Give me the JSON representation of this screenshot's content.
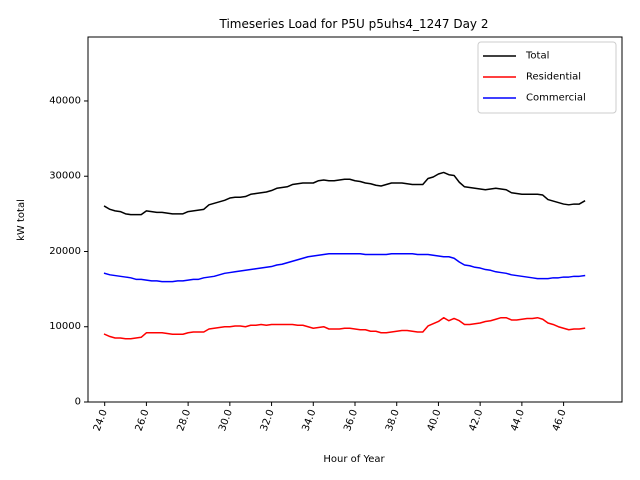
{
  "chart_data": {
    "type": "line",
    "title": "Timeseries Load for P5U p5uhs4_1247  Day 2",
    "xlabel": "Hour of Year",
    "ylabel": "kW total",
    "xlim": [
      23.2,
      48.8
    ],
    "ylim": [
      0,
      48500
    ],
    "xticks": [
      24,
      26,
      28,
      30,
      32,
      34,
      36,
      38,
      40,
      42,
      44,
      46
    ],
    "xtick_labels": [
      "24.0",
      "26.0",
      "28.0",
      "30.0",
      "32.0",
      "34.0",
      "36.0",
      "38.0",
      "40.0",
      "42.0",
      "44.0",
      "46.0"
    ],
    "yticks": [
      0,
      10000,
      20000,
      30000,
      40000
    ],
    "ytick_labels": [
      "0",
      "10000",
      "20000",
      "30000",
      "40000"
    ],
    "legend_position": "top-right",
    "x_start": 24.0,
    "x_step": 0.25,
    "series": [
      {
        "name": "Total",
        "color": "#000000",
        "values": [
          26000,
          25600,
          25400,
          25300,
          25000,
          24900,
          24900,
          24900,
          25400,
          25300,
          25200,
          25200,
          25100,
          25000,
          25000,
          25000,
          25300,
          25400,
          25500,
          25600,
          26200,
          26400,
          26600,
          26800,
          27100,
          27200,
          27200,
          27300,
          27600,
          27700,
          27800,
          27900,
          28100,
          28400,
          28500,
          28600,
          28900,
          29000,
          29100,
          29100,
          29100,
          29400,
          29500,
          29400,
          29400,
          29500,
          29600,
          29600,
          29400,
          29300,
          29100,
          29000,
          28800,
          28700,
          28900,
          29100,
          29100,
          29100,
          29000,
          28900,
          28900,
          28900,
          29700,
          29900,
          30300,
          30500,
          30200,
          30100,
          29200,
          28600,
          28500,
          28400,
          28300,
          28200,
          28300,
          28400,
          28300,
          28200,
          27800,
          27700,
          27600,
          27600,
          27600,
          27600,
          27500,
          26900,
          26700,
          26500,
          26300,
          26200,
          26300,
          26300,
          26700
        ]
      },
      {
        "name": "Residential",
        "color": "#ff0000",
        "values": [
          9000,
          8700,
          8500,
          8500,
          8400,
          8400,
          8500,
          8600,
          9200,
          9200,
          9200,
          9200,
          9100,
          9000,
          9000,
          9000,
          9200,
          9300,
          9300,
          9300,
          9700,
          9800,
          9900,
          10000,
          10000,
          10100,
          10100,
          10000,
          10200,
          10200,
          10300,
          10200,
          10300,
          10300,
          10300,
          10300,
          10300,
          10200,
          10200,
          10000,
          9800,
          9900,
          10000,
          9700,
          9700,
          9700,
          9800,
          9800,
          9700,
          9600,
          9600,
          9400,
          9400,
          9200,
          9200,
          9300,
          9400,
          9500,
          9500,
          9400,
          9300,
          9300,
          10100,
          10400,
          10700,
          11200,
          10800,
          11100,
          10800,
          10300,
          10300,
          10400,
          10500,
          10700,
          10800,
          11000,
          11200,
          11200,
          10900,
          10900,
          11000,
          11100,
          11100,
          11200,
          11000,
          10500,
          10300,
          10000,
          9800,
          9600,
          9700,
          9700,
          9800
        ]
      },
      {
        "name": "Commercial",
        "color": "#0000ff",
        "values": [
          17100,
          16900,
          16800,
          16700,
          16600,
          16500,
          16300,
          16300,
          16200,
          16100,
          16100,
          16000,
          16000,
          16000,
          16100,
          16100,
          16200,
          16300,
          16300,
          16500,
          16600,
          16700,
          16900,
          17100,
          17200,
          17300,
          17400,
          17500,
          17600,
          17700,
          17800,
          17900,
          18000,
          18200,
          18300,
          18500,
          18700,
          18900,
          19100,
          19300,
          19400,
          19500,
          19600,
          19700,
          19700,
          19700,
          19700,
          19700,
          19700,
          19700,
          19600,
          19600,
          19600,
          19600,
          19600,
          19700,
          19700,
          19700,
          19700,
          19700,
          19600,
          19600,
          19600,
          19500,
          19400,
          19300,
          19300,
          19100,
          18600,
          18200,
          18100,
          17900,
          17800,
          17600,
          17500,
          17300,
          17200,
          17100,
          16900,
          16800,
          16700,
          16600,
          16500,
          16400,
          16400,
          16400,
          16500,
          16500,
          16600,
          16600,
          16700,
          16700,
          16800
        ]
      }
    ]
  }
}
